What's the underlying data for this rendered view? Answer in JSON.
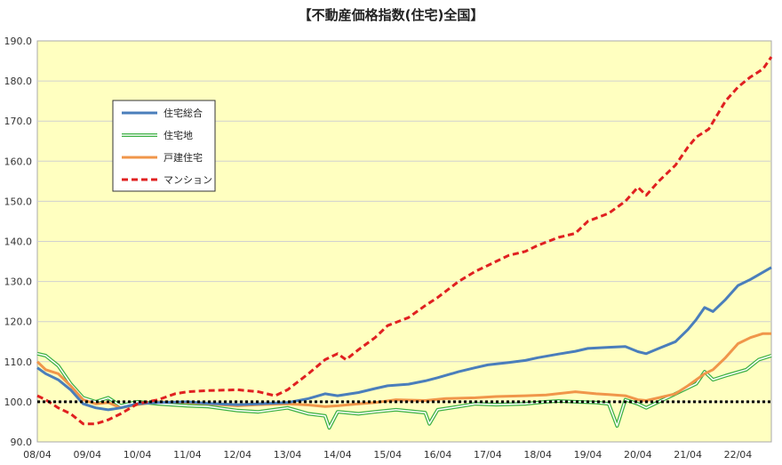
{
  "chart_data": {
    "type": "line",
    "title": "【不動産価格指数(住宅)全国】",
    "xlabel": "",
    "ylabel": "",
    "ylim": [
      90,
      190
    ],
    "yticks": [
      "90.0",
      "100.0",
      "110.0",
      "120.0",
      "130.0",
      "140.0",
      "150.0",
      "160.0",
      "170.0",
      "180.0",
      "190.0"
    ],
    "xticks": [
      "08/04",
      "09/04",
      "10/04",
      "11/04",
      "12/04",
      "13/04",
      "14/04",
      "15/04",
      "16/04",
      "17/04",
      "18/04",
      "19/04",
      "20/04",
      "21/04",
      "22/04"
    ],
    "x_start": "2008-04",
    "x_end": "2022-12",
    "reference_line": {
      "value": 100,
      "style": "dotted",
      "color": "#000000"
    },
    "plot_background": "#ffffc0",
    "grid": "horizontal",
    "legend_position": "upper-left",
    "series": [
      {
        "name": "住宅総合",
        "color": "#4a7ebb",
        "style": "solid",
        "points": [
          [
            "2008-04",
            108.5
          ],
          [
            "2008-06",
            107.0
          ],
          [
            "2008-09",
            105.5
          ],
          [
            "2008-12",
            103.0
          ],
          [
            "2009-03",
            99.5
          ],
          [
            "2009-06",
            98.5
          ],
          [
            "2009-09",
            98.0
          ],
          [
            "2009-12",
            98.5
          ],
          [
            "2010-04",
            99.5
          ],
          [
            "2010-09",
            99.8
          ],
          [
            "2011-04",
            100.0
          ],
          [
            "2011-09",
            99.6
          ],
          [
            "2012-04",
            99.3
          ],
          [
            "2012-09",
            99.5
          ],
          [
            "2013-04",
            99.8
          ],
          [
            "2013-09",
            100.8
          ],
          [
            "2014-01",
            102.0
          ],
          [
            "2014-04",
            101.5
          ],
          [
            "2014-09",
            102.3
          ],
          [
            "2015-01",
            103.3
          ],
          [
            "2015-04",
            104.0
          ],
          [
            "2015-09",
            104.4
          ],
          [
            "2016-01",
            105.2
          ],
          [
            "2016-04",
            106.0
          ],
          [
            "2016-09",
            107.5
          ],
          [
            "2017-01",
            108.5
          ],
          [
            "2017-04",
            109.2
          ],
          [
            "2017-09",
            109.8
          ],
          [
            "2018-01",
            110.3
          ],
          [
            "2018-04",
            111.0
          ],
          [
            "2018-09",
            111.9
          ],
          [
            "2019-01",
            112.6
          ],
          [
            "2019-04",
            113.3
          ],
          [
            "2019-09",
            113.6
          ],
          [
            "2020-01",
            113.8
          ],
          [
            "2020-04",
            112.5
          ],
          [
            "2020-06",
            112.0
          ],
          [
            "2020-09",
            113.3
          ],
          [
            "2021-01",
            115.0
          ],
          [
            "2021-04",
            118.0
          ],
          [
            "2021-06",
            120.5
          ],
          [
            "2021-08",
            123.5
          ],
          [
            "2021-10",
            122.5
          ],
          [
            "2022-01",
            125.5
          ],
          [
            "2022-04",
            129.0
          ],
          [
            "2022-07",
            130.5
          ],
          [
            "2022-10",
            132.3
          ],
          [
            "2022-12",
            133.5
          ]
        ]
      },
      {
        "name": "住宅地",
        "color": "#3cb043",
        "style": "double",
        "points": [
          [
            "2008-04",
            112.0
          ],
          [
            "2008-06",
            111.5
          ],
          [
            "2008-09",
            109.0
          ],
          [
            "2008-12",
            104.5
          ],
          [
            "2009-03",
            101.0
          ],
          [
            "2009-06",
            100.0
          ],
          [
            "2009-09",
            101.0
          ],
          [
            "2009-12",
            99.0
          ],
          [
            "2010-04",
            100.0
          ],
          [
            "2010-09",
            99.5
          ],
          [
            "2011-04",
            99.0
          ],
          [
            "2011-09",
            98.8
          ],
          [
            "2012-04",
            97.8
          ],
          [
            "2012-09",
            97.5
          ],
          [
            "2013-04",
            98.5
          ],
          [
            "2013-09",
            97.0
          ],
          [
            "2014-01",
            96.5
          ],
          [
            "2014-02",
            93.5
          ],
          [
            "2014-04",
            97.5
          ],
          [
            "2014-09",
            97.0
          ],
          [
            "2015-01",
            97.5
          ],
          [
            "2015-06",
            98.0
          ],
          [
            "2016-01",
            97.3
          ],
          [
            "2016-02",
            94.5
          ],
          [
            "2016-04",
            98.0
          ],
          [
            "2016-09",
            98.8
          ],
          [
            "2017-01",
            99.5
          ],
          [
            "2017-06",
            99.3
          ],
          [
            "2018-01",
            99.5
          ],
          [
            "2018-06",
            100.0
          ],
          [
            "2018-09",
            100.2
          ],
          [
            "2019-01",
            100.0
          ],
          [
            "2019-06",
            99.8
          ],
          [
            "2019-09",
            99.5
          ],
          [
            "2019-11",
            94.0
          ],
          [
            "2020-01",
            100.5
          ],
          [
            "2020-04",
            99.5
          ],
          [
            "2020-06",
            98.5
          ],
          [
            "2020-09",
            100.0
          ],
          [
            "2021-01",
            102.0
          ],
          [
            "2021-06",
            104.5
          ],
          [
            "2021-08",
            107.5
          ],
          [
            "2021-10",
            105.5
          ],
          [
            "2022-01",
            106.5
          ],
          [
            "2022-06",
            108.0
          ],
          [
            "2022-09",
            110.5
          ],
          [
            "2022-12",
            111.5
          ]
        ]
      },
      {
        "name": "戸建住宅",
        "color": "#f0964a",
        "style": "solid",
        "points": [
          [
            "2008-04",
            110.0
          ],
          [
            "2008-06",
            108.0
          ],
          [
            "2008-09",
            107.0
          ],
          [
            "2008-12",
            104.0
          ],
          [
            "2009-03",
            100.5
          ],
          [
            "2009-06",
            99.5
          ],
          [
            "2009-09",
            99.8
          ],
          [
            "2009-12",
            98.5
          ],
          [
            "2010-04",
            99.3
          ],
          [
            "2010-09",
            100.0
          ],
          [
            "2011-04",
            99.8
          ],
          [
            "2011-09",
            99.5
          ],
          [
            "2012-04",
            99.0
          ],
          [
            "2012-09",
            99.3
          ],
          [
            "2013-04",
            99.5
          ],
          [
            "2013-09",
            99.2
          ],
          [
            "2014-01",
            98.8
          ],
          [
            "2014-04",
            99.0
          ],
          [
            "2014-09",
            99.5
          ],
          [
            "2015-01",
            99.8
          ],
          [
            "2015-06",
            100.5
          ],
          [
            "2016-01",
            100.3
          ],
          [
            "2016-06",
            100.8
          ],
          [
            "2017-01",
            101.0
          ],
          [
            "2017-06",
            101.3
          ],
          [
            "2018-01",
            101.5
          ],
          [
            "2018-06",
            101.7
          ],
          [
            "2019-01",
            102.5
          ],
          [
            "2019-06",
            102.0
          ],
          [
            "2019-09",
            101.8
          ],
          [
            "2020-01",
            101.5
          ],
          [
            "2020-04",
            100.5
          ],
          [
            "2020-06",
            100.3
          ],
          [
            "2020-09",
            101.0
          ],
          [
            "2021-01",
            102.0
          ],
          [
            "2021-04",
            104.0
          ],
          [
            "2021-06",
            105.5
          ],
          [
            "2021-08",
            107.0
          ],
          [
            "2021-10",
            108.0
          ],
          [
            "2022-01",
            111.0
          ],
          [
            "2022-04",
            114.5
          ],
          [
            "2022-07",
            116.0
          ],
          [
            "2022-10",
            117.0
          ],
          [
            "2022-12",
            117.0
          ]
        ]
      },
      {
        "name": "マンション",
        "color": "#e02020",
        "style": "dashed",
        "points": [
          [
            "2008-04",
            101.5
          ],
          [
            "2008-06",
            100.5
          ],
          [
            "2008-09",
            98.5
          ],
          [
            "2008-12",
            97.0
          ],
          [
            "2009-03",
            94.5
          ],
          [
            "2009-06",
            94.5
          ],
          [
            "2009-09",
            95.5
          ],
          [
            "2009-12",
            97.0
          ],
          [
            "2010-04",
            99.5
          ],
          [
            "2010-09",
            100.5
          ],
          [
            "2011-01",
            102.0
          ],
          [
            "2011-04",
            102.5
          ],
          [
            "2011-09",
            102.8
          ],
          [
            "2012-04",
            103.0
          ],
          [
            "2012-09",
            102.5
          ],
          [
            "2013-01",
            101.5
          ],
          [
            "2013-04",
            103.0
          ],
          [
            "2013-09",
            107.0
          ],
          [
            "2014-01",
            110.5
          ],
          [
            "2014-04",
            112.0
          ],
          [
            "2014-06",
            110.5
          ],
          [
            "2014-09",
            113.0
          ],
          [
            "2015-01",
            116.0
          ],
          [
            "2015-04",
            119.0
          ],
          [
            "2015-09",
            121.0
          ],
          [
            "2016-01",
            124.0
          ],
          [
            "2016-04",
            126.0
          ],
          [
            "2016-09",
            130.0
          ],
          [
            "2017-01",
            132.5
          ],
          [
            "2017-04",
            134.0
          ],
          [
            "2017-09",
            136.5
          ],
          [
            "2018-01",
            137.5
          ],
          [
            "2018-04",
            139.0
          ],
          [
            "2018-09",
            141.0
          ],
          [
            "2019-01",
            142.0
          ],
          [
            "2019-04",
            145.0
          ],
          [
            "2019-09",
            147.0
          ],
          [
            "2020-01",
            150.0
          ],
          [
            "2020-04",
            153.5
          ],
          [
            "2020-06",
            151.5
          ],
          [
            "2020-09",
            155.0
          ],
          [
            "2021-01",
            159.0
          ],
          [
            "2021-04",
            163.5
          ],
          [
            "2021-06",
            166.0
          ],
          [
            "2021-09",
            168.0
          ],
          [
            "2022-01",
            175.0
          ],
          [
            "2022-04",
            178.5
          ],
          [
            "2022-07",
            181.0
          ],
          [
            "2022-10",
            183.0
          ],
          [
            "2022-12",
            186.0
          ]
        ]
      }
    ]
  }
}
